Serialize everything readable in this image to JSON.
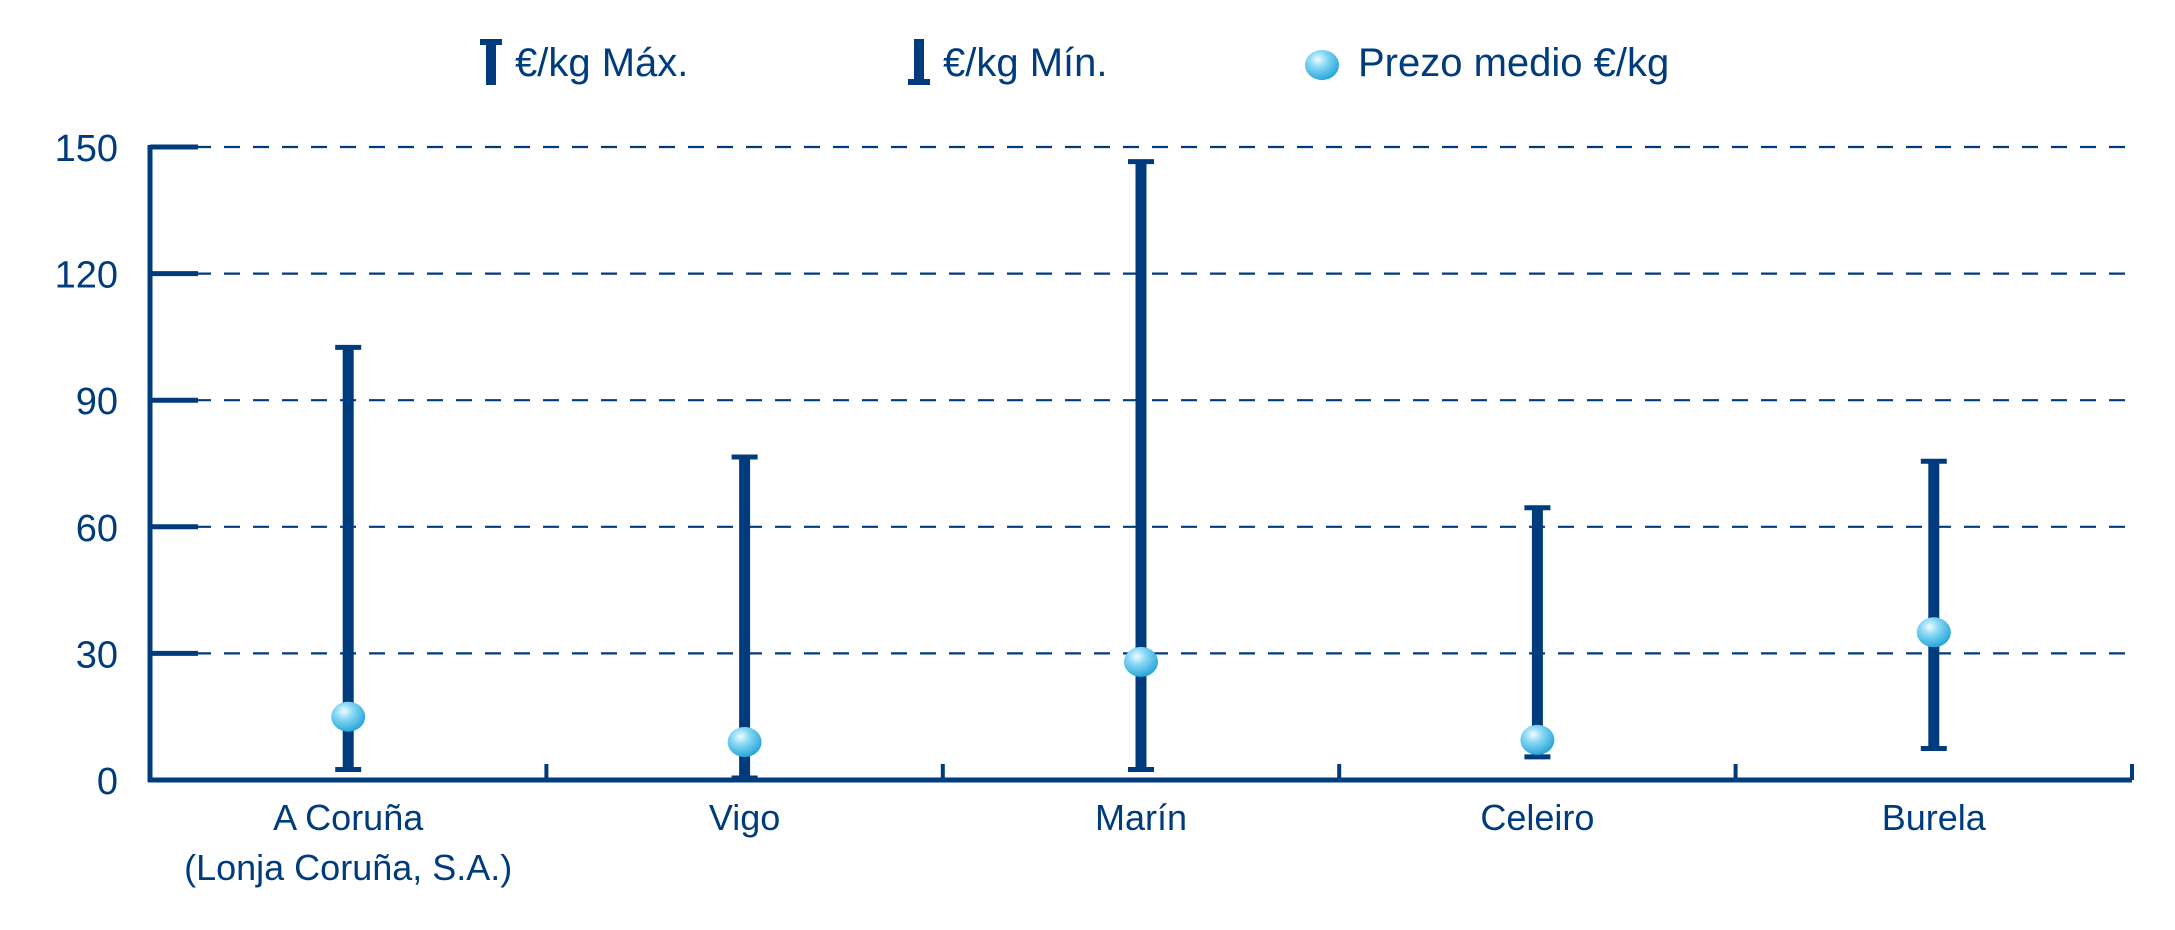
{
  "chart_data": {
    "type": "range",
    "legend": {
      "max_label": "€/kg Máx.",
      "min_label": "€/kg Mín.",
      "avg_label": "Prezo medio €/kg",
      "placement": "top"
    },
    "categories": [
      {
        "label_lines": [
          "A Coruña",
          "(Lonja Coruña, S.A.)"
        ],
        "max": 103,
        "min": 2,
        "avg": 15
      },
      {
        "label_lines": [
          "Vigo"
        ],
        "max": 77,
        "min": 0,
        "avg": 9
      },
      {
        "label_lines": [
          "Marín"
        ],
        "max": 147,
        "min": 2,
        "avg": 28
      },
      {
        "label_lines": [
          "Celeiro"
        ],
        "max": 65,
        "min": 5,
        "avg": 9.5
      },
      {
        "label_lines": [
          "Burela"
        ],
        "max": 76,
        "min": 7,
        "avg": 35
      }
    ],
    "y_ticks": [
      "0",
      "30",
      "60",
      "90",
      "120",
      "150"
    ],
    "ylim": [
      0,
      150
    ],
    "grid": true,
    "colors": {
      "axis": "#003c7d",
      "bar": "#003c7d",
      "dot": "#29b6e8",
      "dot_highlight": "#e6f8ff"
    }
  }
}
